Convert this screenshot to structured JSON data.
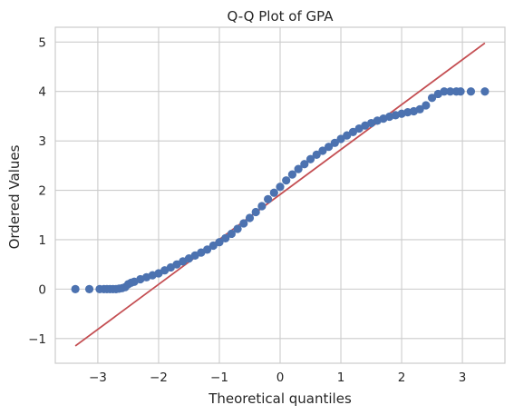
{
  "chart_data": {
    "type": "scatter",
    "title": "Q-Q Plot of GPA",
    "xlabel": "Theoretical quantiles",
    "ylabel": "Ordered Values",
    "xlim": [
      -3.7,
      3.7
    ],
    "ylim": [
      -1.5,
      5.3
    ],
    "xticks": [
      -3,
      -2,
      -1,
      0,
      1,
      2,
      3
    ],
    "xtick_labels": [
      "−3",
      "−2",
      "−1",
      "0",
      "1",
      "2",
      "3"
    ],
    "yticks": [
      -1,
      0,
      1,
      2,
      3,
      4,
      5
    ],
    "ytick_labels": [
      "−1",
      "0",
      "1",
      "2",
      "3",
      "4",
      "5"
    ],
    "grid": true,
    "colors": {
      "points": "#4c72b0",
      "fit_line": "#c44e52",
      "grid": "#cccccc"
    },
    "series": [
      {
        "type": "scatter",
        "x": [
          -3.37,
          -3.14,
          -2.97,
          -2.9,
          -2.85,
          -2.8,
          -2.75,
          -2.7,
          -2.65,
          -2.6,
          -2.55,
          -2.5,
          -2.45,
          -2.4,
          -2.3,
          -2.2,
          -2.1,
          -2.0,
          -1.9,
          -1.8,
          -1.7,
          -1.6,
          -1.5,
          -1.4,
          -1.3,
          -1.2,
          -1.1,
          -1.0,
          -0.9,
          -0.8,
          -0.7,
          -0.6,
          -0.5,
          -0.4,
          -0.3,
          -0.2,
          -0.1,
          0.0,
          0.1,
          0.2,
          0.3,
          0.4,
          0.5,
          0.6,
          0.7,
          0.8,
          0.9,
          1.0,
          1.1,
          1.2,
          1.3,
          1.4,
          1.5,
          1.6,
          1.7,
          1.8,
          1.9,
          2.0,
          2.1,
          2.2,
          2.3,
          2.4,
          2.5,
          2.6,
          2.7,
          2.8,
          2.9,
          2.97,
          3.14,
          3.37
        ],
        "y": [
          0.0,
          0.0,
          0.0,
          0.0,
          0.0,
          0.0,
          0.0,
          0.0,
          0.01,
          0.02,
          0.04,
          0.1,
          0.13,
          0.15,
          0.2,
          0.24,
          0.28,
          0.32,
          0.38,
          0.44,
          0.5,
          0.56,
          0.62,
          0.68,
          0.74,
          0.8,
          0.88,
          0.95,
          1.03,
          1.12,
          1.22,
          1.33,
          1.44,
          1.56,
          1.68,
          1.82,
          1.95,
          2.07,
          2.2,
          2.32,
          2.43,
          2.53,
          2.63,
          2.72,
          2.8,
          2.88,
          2.96,
          3.04,
          3.11,
          3.18,
          3.25,
          3.31,
          3.36,
          3.41,
          3.45,
          3.49,
          3.52,
          3.55,
          3.58,
          3.6,
          3.64,
          3.72,
          3.87,
          3.95,
          4.0,
          4.0,
          4.0,
          4.0,
          4.0,
          4.0
        ]
      },
      {
        "type": "line",
        "x": [
          -3.37,
          3.37
        ],
        "y": [
          -1.15,
          4.98
        ]
      }
    ]
  }
}
